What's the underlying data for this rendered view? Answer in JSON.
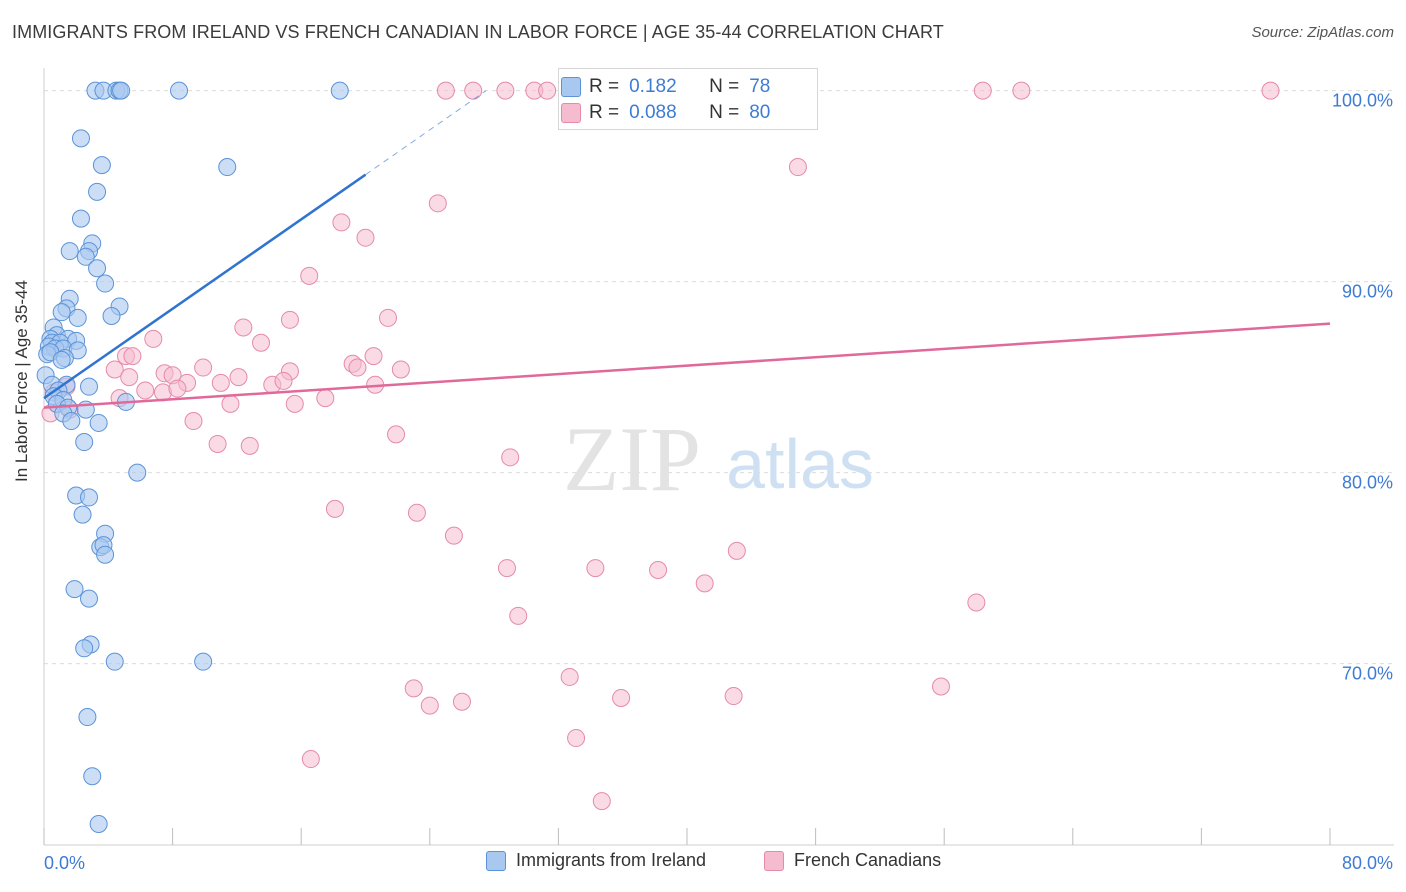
{
  "title": "IMMIGRANTS FROM IRELAND VS FRENCH CANADIAN IN LABOR FORCE | AGE 35-44 CORRELATION CHART",
  "source": "Source: ZipAtlas.com",
  "watermark": {
    "zip": "ZIP",
    "atlas": "atlas"
  },
  "legend": {
    "series1": "Immigrants from Ireland",
    "series2": "French Canadians"
  },
  "stats": {
    "row1": {
      "r_label": "R =",
      "r_value": "0.182",
      "n_label": "N =",
      "n_value": "78"
    },
    "row2": {
      "r_label": "R =",
      "r_value": "0.088",
      "n_label": "N =",
      "n_value": "80"
    }
  },
  "colors": {
    "blue_fill": "#a9c8f0",
    "blue_stroke": "#5b93d8",
    "blue_line": "#2f74d0",
    "pink_fill": "#f5bcd0",
    "pink_stroke": "#e58aaa",
    "pink_line": "#e0699a",
    "axis_label": "#3d7bd4",
    "grid": "#dcdcdc"
  },
  "chart_data": {
    "type": "scatter",
    "title": "IMMIGRANTS FROM IRELAND VS FRENCH CANADIAN IN LABOR FORCE | AGE 35-44 CORRELATION CHART",
    "xlabel": "",
    "ylabel": "In Labor Force | Age 35-44",
    "xlim": [
      0,
      80
    ],
    "ylim": [
      60.5,
      101.5
    ],
    "x_tick_labels": [
      "0.0%",
      "80.0%"
    ],
    "y_ticks": [
      70,
      80,
      90,
      100
    ],
    "y_tick_labels": [
      "70.0%",
      "80.0%",
      "90.0%",
      "100.0%"
    ],
    "grid": true,
    "series": [
      {
        "name": "Immigrants from Ireland",
        "color": "#a9c8f0",
        "trend": {
          "x": [
            0.0,
            20.0
          ],
          "y": [
            83.9,
            95.6
          ],
          "dashed_to": [
            27.5,
            100.0
          ]
        },
        "points": [
          [
            3.2,
            100
          ],
          [
            3.7,
            100
          ],
          [
            4.5,
            100
          ],
          [
            4.7,
            100
          ],
          [
            4.8,
            100
          ],
          [
            8.4,
            100
          ],
          [
            18.4,
            100
          ],
          [
            2.3,
            97.5
          ],
          [
            3.6,
            96.1
          ],
          [
            11.4,
            96.0
          ],
          [
            3.3,
            94.7
          ],
          [
            2.3,
            93.3
          ],
          [
            3.0,
            92.0
          ],
          [
            1.6,
            91.6
          ],
          [
            2.8,
            91.6
          ],
          [
            2.6,
            91.3
          ],
          [
            3.3,
            90.7
          ],
          [
            3.8,
            89.9
          ],
          [
            1.6,
            89.1
          ],
          [
            4.7,
            88.7
          ],
          [
            1.4,
            88.6
          ],
          [
            1.1,
            88.4
          ],
          [
            2.1,
            88.1
          ],
          [
            4.2,
            88.2
          ],
          [
            0.6,
            87.6
          ],
          [
            0.8,
            87.2
          ],
          [
            0.4,
            87.0
          ],
          [
            1.5,
            87.0
          ],
          [
            0.5,
            86.8
          ],
          [
            1.0,
            86.8
          ],
          [
            2.0,
            86.9
          ],
          [
            0.3,
            86.6
          ],
          [
            0.7,
            86.5
          ],
          [
            1.2,
            86.5
          ],
          [
            2.1,
            86.4
          ],
          [
            0.2,
            86.2
          ],
          [
            0.4,
            86.3
          ],
          [
            1.3,
            86.0
          ],
          [
            1.1,
            85.9
          ],
          [
            0.1,
            85.1
          ],
          [
            0.5,
            84.6
          ],
          [
            1.4,
            84.6
          ],
          [
            2.8,
            84.5
          ],
          [
            0.9,
            84.3
          ],
          [
            0.6,
            84.0
          ],
          [
            1.2,
            83.8
          ],
          [
            0.8,
            83.6
          ],
          [
            1.5,
            83.4
          ],
          [
            2.6,
            83.3
          ],
          [
            1.2,
            83.1
          ],
          [
            5.1,
            83.7
          ],
          [
            1.7,
            82.7
          ],
          [
            3.4,
            82.6
          ],
          [
            2.5,
            81.6
          ],
          [
            5.8,
            80.0
          ],
          [
            2.0,
            78.8
          ],
          [
            2.8,
            78.7
          ],
          [
            2.4,
            77.8
          ],
          [
            3.8,
            76.8
          ],
          [
            3.5,
            76.1
          ],
          [
            3.7,
            76.2
          ],
          [
            3.8,
            75.7
          ],
          [
            1.9,
            73.9
          ],
          [
            2.8,
            73.4
          ],
          [
            2.9,
            71.0
          ],
          [
            2.5,
            70.8
          ],
          [
            4.4,
            70.1
          ],
          [
            9.9,
            70.1
          ],
          [
            2.7,
            67.2
          ],
          [
            3.0,
            64.1
          ],
          [
            3.4,
            61.6
          ]
        ]
      },
      {
        "name": "French Canadians",
        "color": "#f5bcd0",
        "trend": {
          "x": [
            0.0,
            80.0
          ],
          "y": [
            83.4,
            87.8
          ]
        },
        "points": [
          [
            25.0,
            100
          ],
          [
            26.7,
            100
          ],
          [
            28.7,
            100
          ],
          [
            30.5,
            100
          ],
          [
            31.3,
            100
          ],
          [
            32.8,
            100
          ],
          [
            34.3,
            100
          ],
          [
            35.2,
            100
          ],
          [
            38.0,
            100
          ],
          [
            58.4,
            100
          ],
          [
            60.8,
            100
          ],
          [
            76.3,
            100
          ],
          [
            46.9,
            96.0
          ],
          [
            24.5,
            94.1
          ],
          [
            18.5,
            93.1
          ],
          [
            20.0,
            92.3
          ],
          [
            16.5,
            90.3
          ],
          [
            21.4,
            88.1
          ],
          [
            15.3,
            88.0
          ],
          [
            12.4,
            87.6
          ],
          [
            13.5,
            86.8
          ],
          [
            6.8,
            87.0
          ],
          [
            5.1,
            86.1
          ],
          [
            5.5,
            86.1
          ],
          [
            20.5,
            86.1
          ],
          [
            19.2,
            85.7
          ],
          [
            19.5,
            85.5
          ],
          [
            22.2,
            85.4
          ],
          [
            4.4,
            85.4
          ],
          [
            7.5,
            85.2
          ],
          [
            9.9,
            85.5
          ],
          [
            15.3,
            85.3
          ],
          [
            12.1,
            85.0
          ],
          [
            5.3,
            85.0
          ],
          [
            8.0,
            85.1
          ],
          [
            8.9,
            84.7
          ],
          [
            11.0,
            84.7
          ],
          [
            14.2,
            84.6
          ],
          [
            14.9,
            84.8
          ],
          [
            20.6,
            84.6
          ],
          [
            1.4,
            84.5
          ],
          [
            0.6,
            84.2
          ],
          [
            6.3,
            84.3
          ],
          [
            7.4,
            84.2
          ],
          [
            8.3,
            84.4
          ],
          [
            4.7,
            83.9
          ],
          [
            17.5,
            83.9
          ],
          [
            15.6,
            83.6
          ],
          [
            11.6,
            83.6
          ],
          [
            1.6,
            83.3
          ],
          [
            0.4,
            83.1
          ],
          [
            9.3,
            82.7
          ],
          [
            21.9,
            82.0
          ],
          [
            10.8,
            81.5
          ],
          [
            12.8,
            81.4
          ],
          [
            29.0,
            80.8
          ],
          [
            18.1,
            78.1
          ],
          [
            23.2,
            77.9
          ],
          [
            25.5,
            76.7
          ],
          [
            43.1,
            75.9
          ],
          [
            34.3,
            75.0
          ],
          [
            28.8,
            75.0
          ],
          [
            38.2,
            74.9
          ],
          [
            41.1,
            74.2
          ],
          [
            58.0,
            73.2
          ],
          [
            29.5,
            72.5
          ],
          [
            32.7,
            69.3
          ],
          [
            23.0,
            68.7
          ],
          [
            35.9,
            68.2
          ],
          [
            26.0,
            68.0
          ],
          [
            24.0,
            67.8
          ],
          [
            42.9,
            68.3
          ],
          [
            55.8,
            68.8
          ],
          [
            33.1,
            66.1
          ],
          [
            16.6,
            65.0
          ],
          [
            34.7,
            62.8
          ],
          [
            47.0,
            100
          ]
        ]
      }
    ]
  }
}
